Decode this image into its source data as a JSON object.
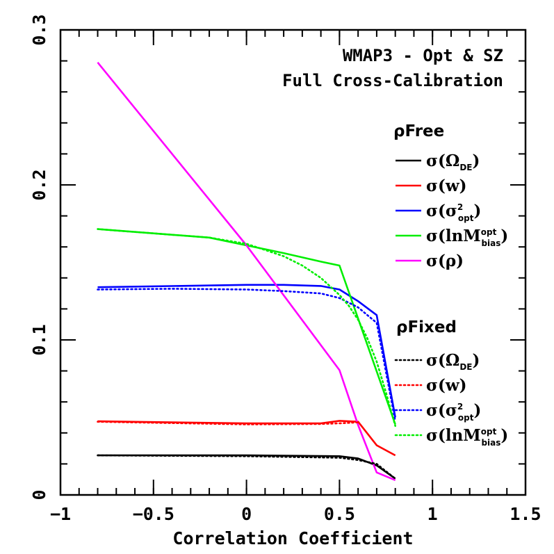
{
  "chart_data": {
    "type": "line",
    "title_lines": [
      "WMAP3 - Opt & SZ",
      "Full Cross-Calibration"
    ],
    "xlabel": "Correlation Coefficient",
    "ylabel": "",
    "xlim": [
      -1,
      1.5
    ],
    "ylim": [
      0,
      0.3
    ],
    "x_ticks": [
      -1,
      -0.5,
      0,
      0.5,
      1,
      1.5
    ],
    "x_tick_labels": [
      "−1",
      "−0.5",
      "0",
      "0.5",
      "1",
      "1.5"
    ],
    "y_ticks": [
      0,
      0.1,
      0.2,
      0.3
    ],
    "y_tick_labels": [
      "0",
      "0.1",
      "0.2",
      "0.3"
    ],
    "x_minor_step": 0.1,
    "y_minor_step": 0.02,
    "grid": false,
    "legend_groups": [
      {
        "heading": "ρFree",
        "style": "solid",
        "placement": "right"
      },
      {
        "heading": "ρFixed",
        "style": "dotted",
        "placement": "lower-right"
      }
    ],
    "series": [
      {
        "group": 0,
        "color": "#000000",
        "label_main": "σ(Ω",
        "label_sub": "DE",
        "label_sup": "",
        "label_end": ")",
        "x": [
          -0.8,
          0,
          0.5,
          0.6,
          0.7,
          0.8
        ],
        "y": [
          0.0255,
          0.0255,
          0.025,
          0.0235,
          0.019,
          0.0105
        ]
      },
      {
        "group": 0,
        "color": "#ff0000",
        "label_main": "σ(w)",
        "label_sub": "",
        "label_sup": "",
        "label_end": "",
        "x": [
          -0.8,
          0,
          0.4,
          0.5,
          0.6,
          0.7,
          0.8
        ],
        "y": [
          0.0475,
          0.0462,
          0.0462,
          0.0478,
          0.0472,
          0.032,
          0.0255
        ]
      },
      {
        "group": 0,
        "color": "#0000ff",
        "label_main": "σ(σ",
        "label_sub": "opt",
        "label_sup": "2",
        "label_end": ")",
        "x": [
          -0.8,
          0,
          0.2,
          0.4,
          0.5,
          0.6,
          0.7,
          0.8
        ],
        "y": [
          0.134,
          0.1355,
          0.1355,
          0.1348,
          0.1325,
          0.125,
          0.116,
          0.05
        ]
      },
      {
        "group": 0,
        "color": "#00ee00",
        "label_main": "σ(lnM",
        "label_sub": "bias",
        "label_sup": "opt",
        "label_end": ")",
        "x": [
          -0.8,
          -0.2,
          0,
          0.2,
          0.4,
          0.5,
          0.8
        ],
        "y": [
          0.1715,
          0.166,
          0.161,
          0.156,
          0.1505,
          0.148,
          0.0455
        ]
      },
      {
        "group": 0,
        "color": "#ff00ff",
        "label_main": "σ(ρ)",
        "label_sub": "",
        "label_sup": "",
        "label_end": "",
        "x": [
          -0.8,
          0,
          0.5,
          0.6,
          0.7,
          0.8
        ],
        "y": [
          0.279,
          0.161,
          0.0805,
          0.045,
          0.0145,
          0.0095
        ]
      },
      {
        "group": 1,
        "color": "#000000",
        "label_main": "σ(Ω",
        "label_sub": "DE",
        "label_sup": "",
        "label_end": ")",
        "x": [
          -0.8,
          0,
          0.5,
          0.6,
          0.7,
          0.8
        ],
        "y": [
          0.0255,
          0.025,
          0.024,
          0.0225,
          0.02,
          0.0105
        ]
      },
      {
        "group": 1,
        "color": "#ff0000",
        "label_main": "σ(w)",
        "label_sub": "",
        "label_sup": "",
        "label_end": "",
        "x": [
          -0.8,
          0,
          0.4,
          0.5,
          0.6
        ],
        "y": [
          0.0472,
          0.0455,
          0.0458,
          0.0462,
          0.0468
        ]
      },
      {
        "group": 1,
        "color": "#0000ff",
        "label_main": "σ(σ",
        "label_sub": "opt",
        "label_sup": "2",
        "label_end": ")",
        "x": [
          -0.8,
          -0.4,
          0,
          0.2,
          0.4,
          0.5,
          0.6,
          0.7,
          0.8
        ],
        "y": [
          0.1325,
          0.133,
          0.1325,
          0.1315,
          0.13,
          0.127,
          0.121,
          0.111,
          0.0475
        ]
      },
      {
        "group": 1,
        "color": "#00ee00",
        "label_main": "σ(lnM",
        "label_sub": "bias",
        "label_sup": "opt",
        "label_end": ")",
        "x": [
          -0.8,
          -0.2,
          0,
          0.2,
          0.3,
          0.4,
          0.5,
          0.55,
          0.6,
          0.65,
          0.7,
          0.75,
          0.8
        ],
        "y": [
          0.1715,
          0.166,
          0.162,
          0.154,
          0.148,
          0.14,
          0.129,
          0.122,
          0.113,
          0.101,
          0.086,
          0.066,
          0.0445
        ]
      }
    ]
  }
}
